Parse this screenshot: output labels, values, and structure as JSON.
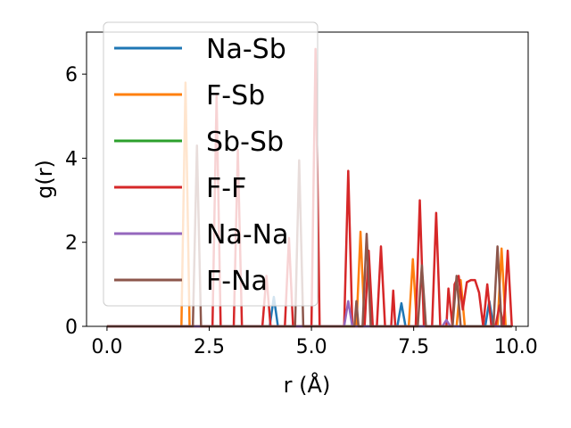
{
  "chart_data": {
    "type": "line",
    "xlabel": "r (Å)",
    "ylabel": "g(r)",
    "xlim": [
      -0.5,
      10.3
    ],
    "ylim": [
      0,
      7
    ],
    "xticks": [
      "0.0",
      "2.5",
      "5.0",
      "7.5",
      "10.0"
    ],
    "yticks": [
      "0",
      "2",
      "4",
      "6"
    ],
    "grid": false,
    "legend_position": "top-left",
    "series": [
      {
        "name": "Na-Sb",
        "color": "#1f77b4",
        "points": [
          [
            0,
            0
          ],
          [
            3.98,
            0
          ],
          [
            4.08,
            0.7
          ],
          [
            4.18,
            0
          ],
          [
            7.1,
            0
          ],
          [
            7.2,
            0.55
          ],
          [
            7.3,
            0
          ],
          [
            9.25,
            0
          ],
          [
            9.35,
            0.6
          ],
          [
            9.45,
            0
          ],
          [
            9.9,
            0
          ]
        ]
      },
      {
        "name": "F-Sb",
        "color": "#ff7f0e",
        "points": [
          [
            0,
            0
          ],
          [
            1.82,
            0
          ],
          [
            1.92,
            5.8
          ],
          [
            2.02,
            0
          ],
          [
            6.1,
            0
          ],
          [
            6.2,
            2.25
          ],
          [
            6.3,
            0
          ],
          [
            7.38,
            0
          ],
          [
            7.48,
            1.6
          ],
          [
            7.58,
            0
          ],
          [
            8.55,
            0
          ],
          [
            8.65,
            1.1
          ],
          [
            8.75,
            0
          ],
          [
            9.55,
            0
          ],
          [
            9.65,
            1.85
          ],
          [
            9.75,
            0
          ],
          [
            9.9,
            0
          ]
        ]
      },
      {
        "name": "Sb-Sb",
        "color": "#2ca02c",
        "points": [
          [
            0,
            0
          ],
          [
            9.9,
            0
          ]
        ]
      },
      {
        "name": "F-F",
        "color": "#d62728",
        "points": [
          [
            0,
            0
          ],
          [
            2.58,
            0
          ],
          [
            2.68,
            5.5
          ],
          [
            2.78,
            0
          ],
          [
            3.1,
            0
          ],
          [
            3.2,
            4.2
          ],
          [
            3.3,
            0
          ],
          [
            3.8,
            0
          ],
          [
            3.9,
            1.2
          ],
          [
            4.0,
            0
          ],
          [
            4.35,
            0
          ],
          [
            4.45,
            2.1
          ],
          [
            4.55,
            0
          ],
          [
            5.0,
            0
          ],
          [
            5.1,
            6.6
          ],
          [
            5.2,
            0
          ],
          [
            5.8,
            0
          ],
          [
            5.9,
            3.7
          ],
          [
            6.0,
            0
          ],
          [
            6.3,
            0
          ],
          [
            6.4,
            1.8
          ],
          [
            6.5,
            0
          ],
          [
            6.6,
            0
          ],
          [
            6.7,
            1.9
          ],
          [
            6.8,
            0
          ],
          [
            6.95,
            0
          ],
          [
            7.0,
            0.85
          ],
          [
            7.05,
            0
          ],
          [
            7.55,
            0
          ],
          [
            7.65,
            3.0
          ],
          [
            7.75,
            0
          ],
          [
            7.95,
            0
          ],
          [
            8.05,
            2.7
          ],
          [
            8.15,
            0
          ],
          [
            8.3,
            0
          ],
          [
            8.35,
            0.9
          ],
          [
            8.45,
            0
          ],
          [
            8.5,
            1.0
          ],
          [
            8.6,
            1.2
          ],
          [
            8.7,
            0.4
          ],
          [
            8.8,
            1.05
          ],
          [
            8.9,
            1.1
          ],
          [
            9.0,
            1.1
          ],
          [
            9.1,
            0.8
          ],
          [
            9.2,
            0
          ],
          [
            9.3,
            1.0
          ],
          [
            9.4,
            0
          ],
          [
            9.5,
            0
          ],
          [
            9.6,
            0.5
          ],
          [
            9.7,
            0
          ],
          [
            9.8,
            1.8
          ],
          [
            9.9,
            0
          ]
        ]
      },
      {
        "name": "Na-Na",
        "color": "#9467bd",
        "points": [
          [
            0,
            0
          ],
          [
            5.8,
            0
          ],
          [
            5.9,
            0.6
          ],
          [
            6.0,
            0
          ],
          [
            8.2,
            0
          ],
          [
            8.3,
            0.15
          ],
          [
            8.4,
            0
          ],
          [
            9.9,
            0
          ]
        ]
      },
      {
        "name": "F-Na",
        "color": "#8c564b",
        "points": [
          [
            0,
            0
          ],
          [
            2.1,
            0
          ],
          [
            2.2,
            4.3
          ],
          [
            2.3,
            0
          ],
          [
            4.6,
            0
          ],
          [
            4.7,
            3.95
          ],
          [
            4.8,
            0
          ],
          [
            6.05,
            0
          ],
          [
            6.1,
            0.6
          ],
          [
            6.15,
            0
          ],
          [
            6.25,
            0
          ],
          [
            6.35,
            2.2
          ],
          [
            6.45,
            0
          ],
          [
            7.6,
            0
          ],
          [
            7.7,
            1.45
          ],
          [
            7.8,
            0
          ],
          [
            8.45,
            0
          ],
          [
            8.55,
            1.2
          ],
          [
            8.65,
            0
          ],
          [
            9.45,
            0
          ],
          [
            9.55,
            1.9
          ],
          [
            9.65,
            0
          ],
          [
            9.9,
            0
          ]
        ]
      }
    ]
  }
}
